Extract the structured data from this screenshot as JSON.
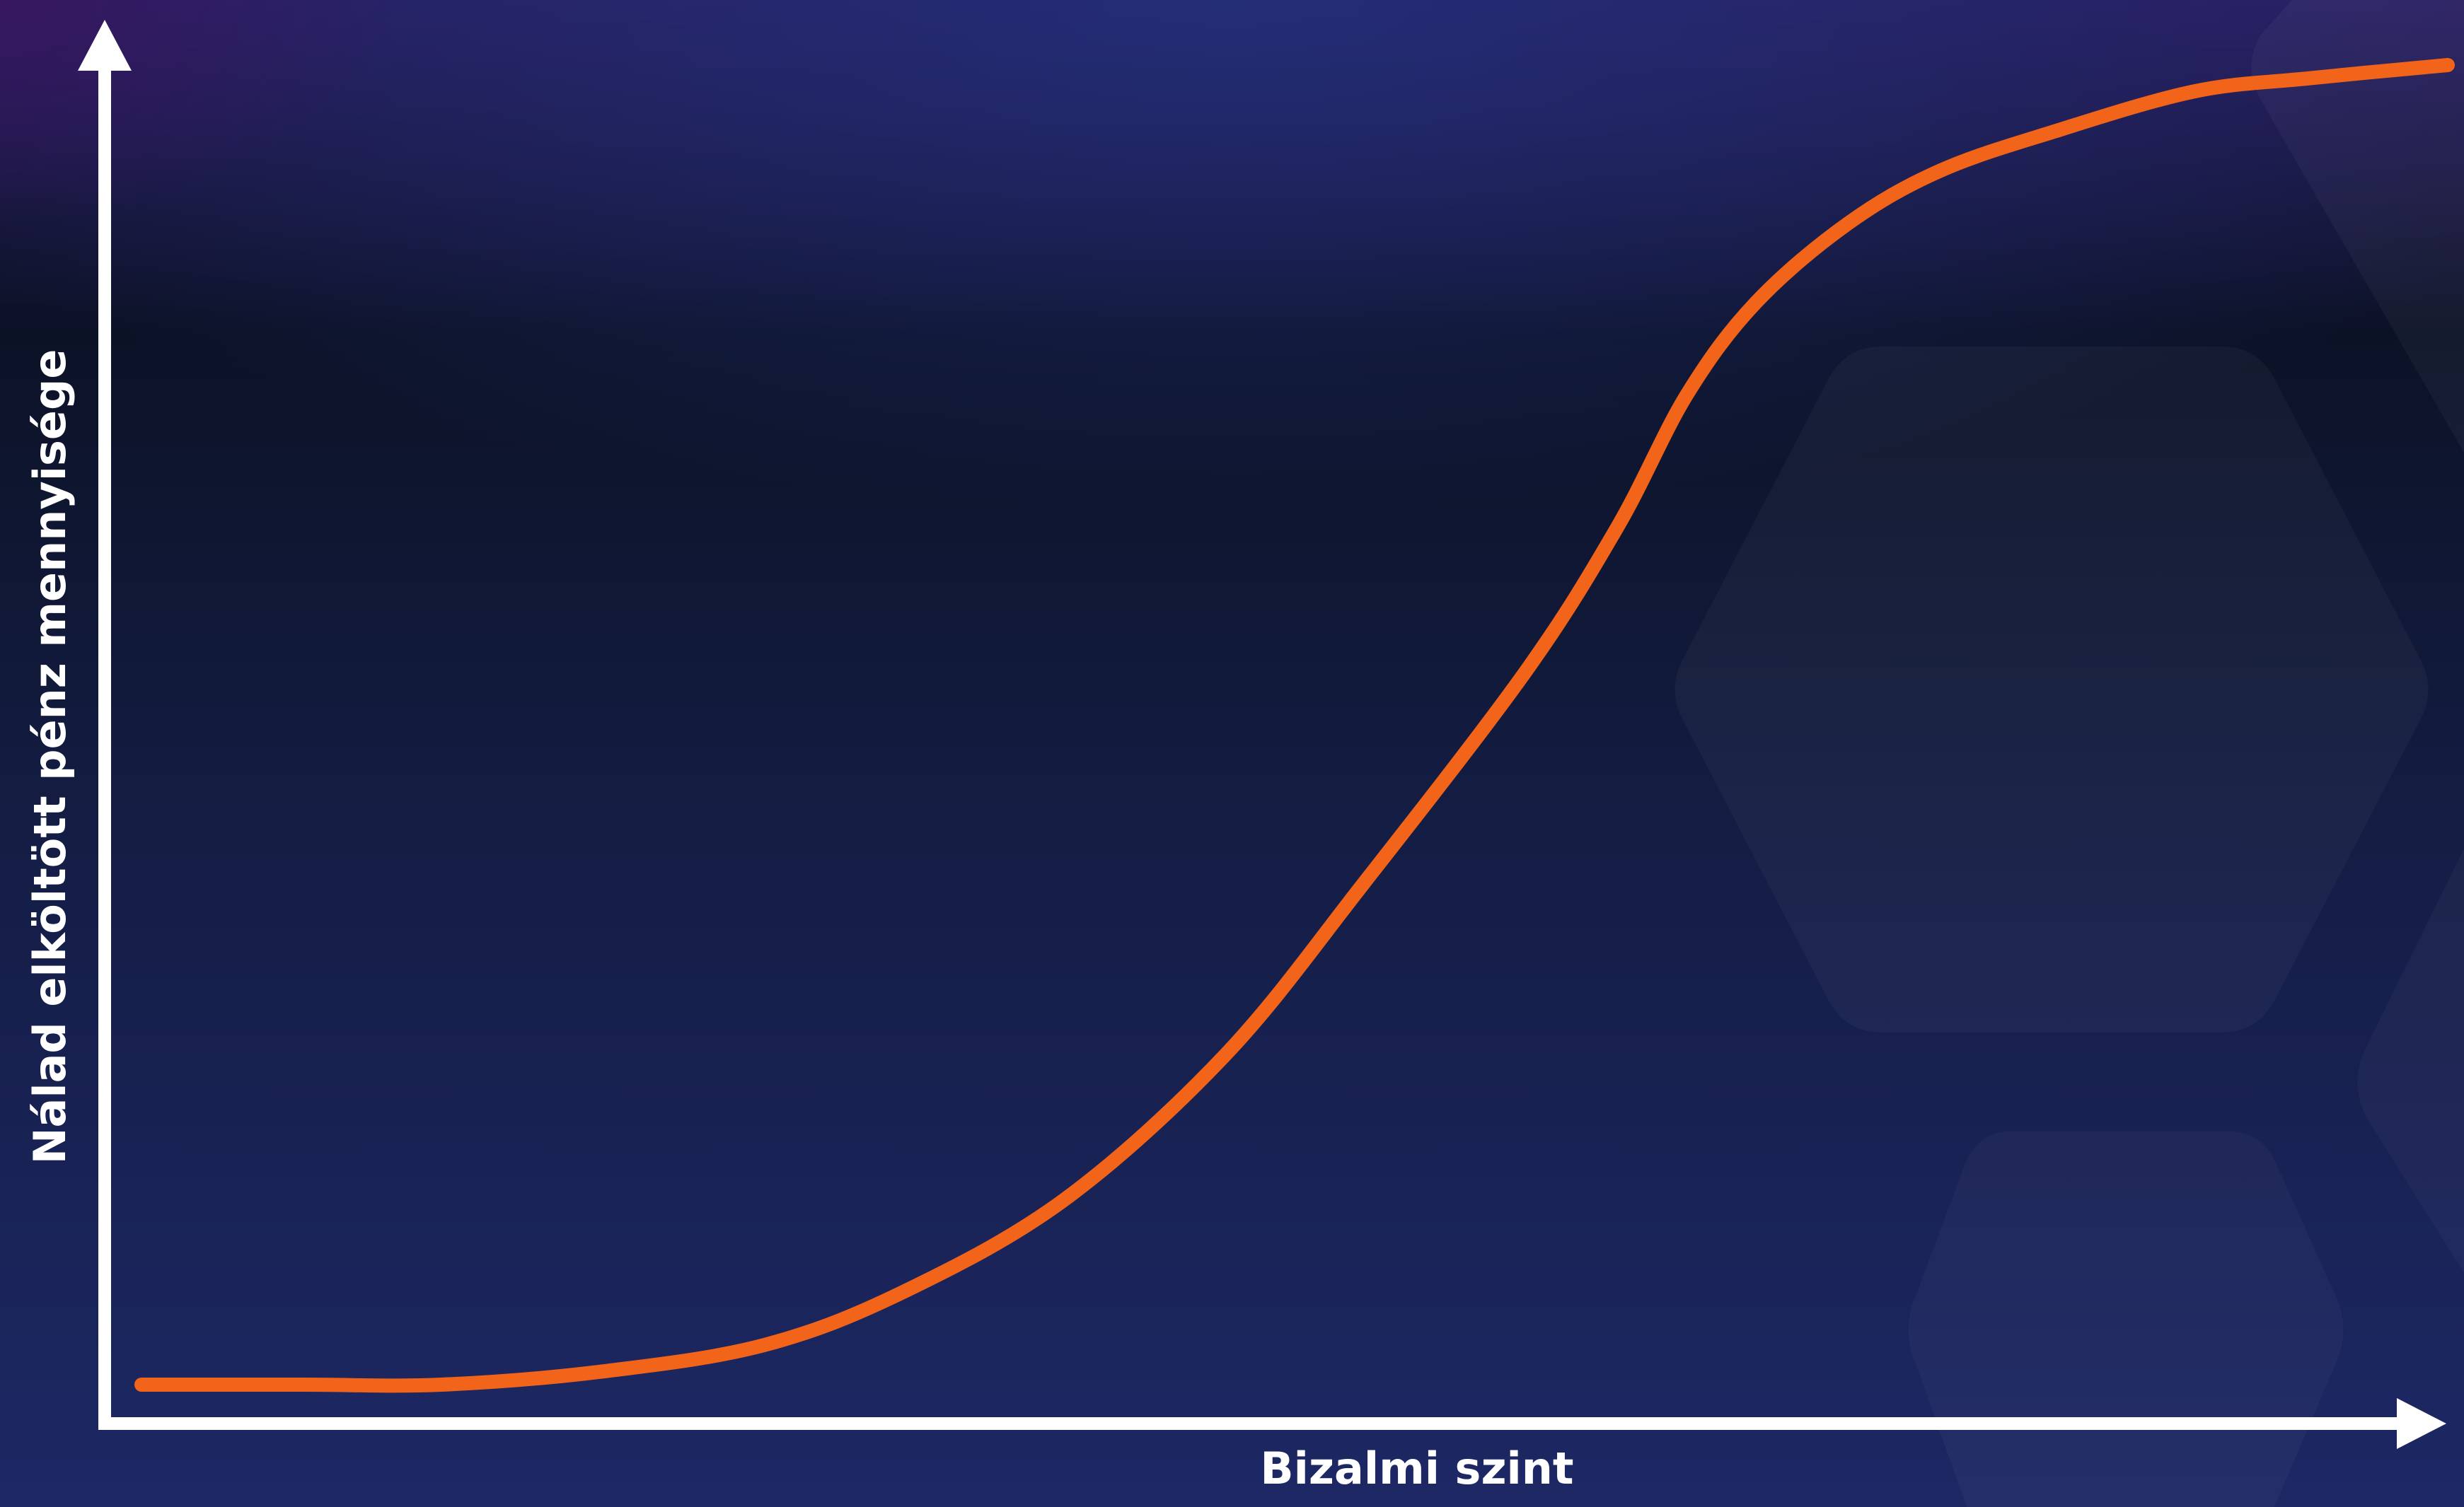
{
  "chart_data": {
    "type": "line",
    "title": "",
    "xlabel": "Bizalmi szint",
    "ylabel": "Nálad elköltött pénz mennyisége",
    "xlim": [
      0,
      1
    ],
    "ylim": [
      0,
      1
    ],
    "grid": false,
    "legend": "none",
    "x_ticks_shown": false,
    "y_ticks_shown": false,
    "series": [
      {
        "x": [
          0.0,
          0.07,
          0.13,
          0.2,
          0.27,
          0.33,
          0.4,
          0.47,
          0.53,
          0.6,
          0.64,
          0.67,
          0.7,
          0.74,
          0.78,
          0.83,
          0.89,
          0.94,
          1.0
        ],
        "y": [
          0.0,
          0.0,
          0.0,
          0.01,
          0.03,
          0.07,
          0.14,
          0.25,
          0.38,
          0.54,
          0.65,
          0.75,
          0.82,
          0.88,
          0.92,
          0.95,
          0.98,
          0.99,
          1.0
        ]
      }
    ]
  },
  "style": {
    "line_color": "#f26419",
    "axis_color": "#ffffff",
    "bg_top": "#231a58",
    "bg_mid": "#0d1428",
    "bg_bottom": "#1b2660"
  }
}
